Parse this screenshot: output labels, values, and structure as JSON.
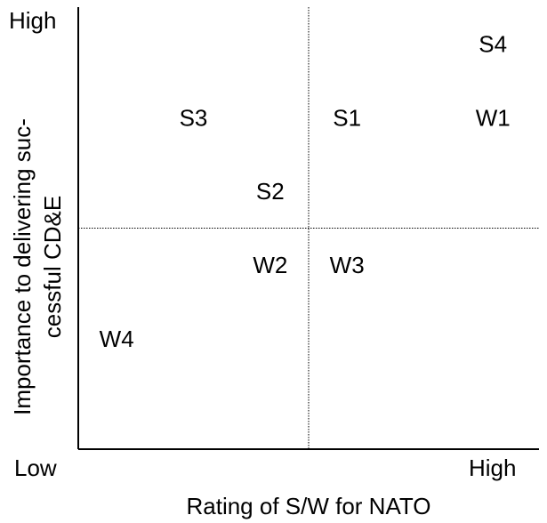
{
  "chart_data": {
    "type": "scatter",
    "title": "",
    "xlabel": "Rating of S/W for NATO",
    "ylabel_lines": [
      "Importance to delivering suc-",
      "cessful CD&E"
    ],
    "x_low_label": "Low",
    "x_high_label": "High",
    "y_high_label": "High",
    "xlim": [
      0,
      6
    ],
    "ylim": [
      0,
      6
    ],
    "divider_x": 3,
    "divider_y": 3,
    "grid": false,
    "legend": "none",
    "points": [
      {
        "label": "S4",
        "x": 5.4,
        "y": 5.5
      },
      {
        "label": "S3",
        "x": 1.5,
        "y": 4.5
      },
      {
        "label": "S1",
        "x": 3.5,
        "y": 4.5
      },
      {
        "label": "W1",
        "x": 5.4,
        "y": 4.5
      },
      {
        "label": "S2",
        "x": 2.5,
        "y": 3.5
      },
      {
        "label": "W2",
        "x": 2.5,
        "y": 2.5
      },
      {
        "label": "W3",
        "x": 3.5,
        "y": 2.5
      },
      {
        "label": "W4",
        "x": 0.5,
        "y": 1.5
      }
    ]
  }
}
